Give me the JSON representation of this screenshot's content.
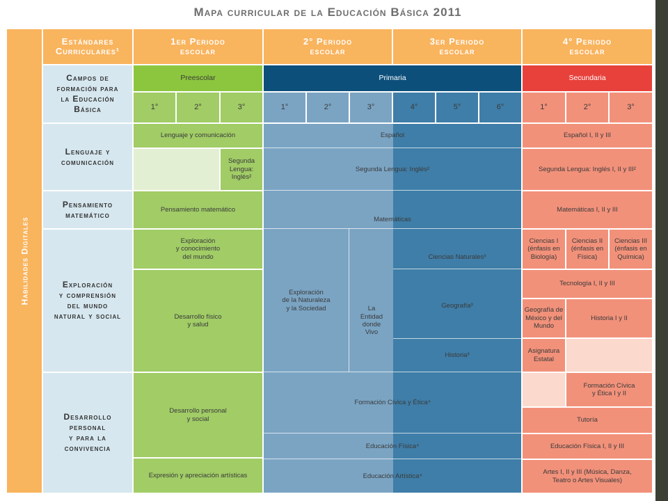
{
  "title": "Mapa curricular de la Educación Básica 2011",
  "side_label": "Habilidades Digitales",
  "colors": {
    "orange": "#f9b45e",
    "field": "#d6e7ef",
    "preescolar": "#a1cc66",
    "primaria_light": "#7ba4c3",
    "primaria_dark": "#3f7ea8",
    "secundaria": "#f2917a",
    "frame": "#3c3f34"
  },
  "header": {
    "estandares": "Estándares\nCurriculares¹",
    "periodo1": "1er Periodo\nescolar",
    "periodo2": "2° Periodo\nescolar",
    "periodo3": "3er Periodo\nescolar",
    "periodo4": "4° Periodo\nescolar"
  },
  "campos_label": "Campos de\nformación para\nla Educación\nBásica",
  "levels": {
    "preescolar": "Preescolar",
    "primaria": "Primaria",
    "secundaria": "Secundaria"
  },
  "grades": {
    "pre": [
      "1°",
      "2°",
      "3°"
    ],
    "pri": [
      "1°",
      "2°",
      "3°",
      "4°",
      "5°",
      "6°"
    ],
    "sec": [
      "1°",
      "2°",
      "3°"
    ]
  },
  "fields": {
    "lenguaje": "Lenguaje y\ncomunicación",
    "pensamiento": "Pensamiento\nmatemático",
    "exploracion": "Exploración\ny comprensión\ndel mundo\nnatural y social",
    "desarrollo": "Desarrollo\npersonal\ny para la\nconvivencia"
  },
  "pre": {
    "lenguaje": "Lenguaje y comunicación",
    "segunda_lengua": "Segunda\nLengua:\nInglés²",
    "pensamiento": "Pensamiento matemático",
    "exploracion": "Exploración\ny conocimiento\ndel mundo",
    "desarrollo_fisico": "Desarrollo físico\ny salud",
    "desarrollo_personal": "Desarrollo personal\ny social",
    "expresion": "Expresión y apreciación artísticas"
  },
  "pri": {
    "espanol": "Español",
    "segunda_lengua": "Segunda Lengua: Inglés²",
    "matematicas": "Matemáticas",
    "exploracion_naturaleza": "Exploración\nde la Naturaleza\ny la Sociedad",
    "entidad": "La\nEntidad\ndonde\nVivo",
    "ciencias": "Ciencias Naturales³",
    "geografia": "Geografía³",
    "historia": "Historia³",
    "formacion": "Formación Cívica y Ética⁴",
    "educacion_fisica": "Educación Física⁴",
    "educacion_artistica": "Educación Artística⁴"
  },
  "sec": {
    "espanol": "Español I, II y III",
    "segunda_lengua": "Segunda Lengua: Inglés I, II y III²",
    "matematicas": "Matemáticas  I, II y III",
    "ciencias1": "Ciencias I\n(énfasis en\nBiología)",
    "ciencias2": "Ciencias II\n(énfasis en\nFísica)",
    "ciencias3": "Ciencias III\n(énfasis en\nQuímica)",
    "tecnologia": "Tecnología  I, II y III",
    "geografia": "Geografía de\nMéxico y del\nMundo",
    "historia": "Historia I y II",
    "asignatura": "Asignatura\nEstatal",
    "formacion": "Formación Cívica\ny Ética I y II",
    "tutoria": "Tutoría",
    "educacion_fisica": "Educación Física I, II y III",
    "artes": "Artes I, II y III (Música, Danza,\nTeatro o Artes Visuales)"
  }
}
